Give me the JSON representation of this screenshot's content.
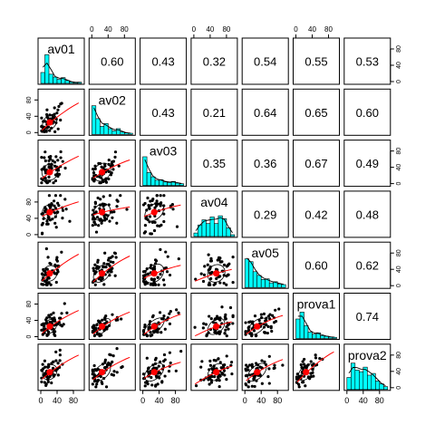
{
  "chart_data": {
    "type": "scatter",
    "title": "",
    "variables": [
      "av01",
      "av02",
      "av03",
      "av04",
      "av05",
      "prova1",
      "prova2"
    ],
    "axis_range": [
      0,
      100
    ],
    "axis_ticks": [
      "0",
      "40",
      "80"
    ],
    "tick_values": [
      0,
      40,
      80
    ],
    "correlations": [
      [
        "",
        "0.60",
        "0.43",
        "0.32",
        "0.54",
        "0.55",
        "0.53"
      ],
      [
        "",
        "",
        "0.43",
        "0.21",
        "0.64",
        "0.65",
        "0.60"
      ],
      [
        "",
        "",
        "",
        "0.35",
        "0.36",
        "0.67",
        "0.49"
      ],
      [
        "",
        "",
        "",
        "",
        "0.29",
        "0.42",
        "0.48"
      ],
      [
        "",
        "",
        "",
        "",
        "",
        "0.60",
        "0.62"
      ],
      [
        "",
        "",
        "",
        "",
        "",
        "",
        "0.74"
      ],
      [
        "",
        "",
        "",
        "",
        "",
        "",
        ""
      ]
    ],
    "histograms": {
      "av01": [
        0.38,
        1.0,
        0.32,
        0.22,
        0.14,
        0.2,
        0.1,
        0.05,
        0.03,
        0.04
      ],
      "av02": [
        1.0,
        0.55,
        0.28,
        0.38,
        0.2,
        0.12,
        0.2,
        0.08,
        0.05,
        0.04
      ],
      "av03": [
        1.0,
        0.45,
        0.3,
        0.18,
        0.2,
        0.12,
        0.1,
        0.14,
        0.08,
        0.06
      ],
      "av04": [
        0.12,
        0.4,
        0.58,
        0.45,
        0.68,
        0.45,
        0.72,
        0.62,
        0.3,
        0.06
      ],
      "av05": [
        1.0,
        0.9,
        0.55,
        0.42,
        0.28,
        0.3,
        0.16,
        0.2,
        0.12,
        0.1
      ],
      "prova1": [
        0.68,
        0.92,
        0.45,
        0.22,
        0.15,
        0.2,
        0.1,
        0.08,
        0.05,
        0.04
      ],
      "prova2": [
        0.42,
        0.92,
        0.68,
        0.62,
        0.78,
        0.5,
        0.56,
        0.3,
        0.2,
        0.1
      ]
    },
    "colors": {
      "histogram_fill": "#00ffff",
      "fit_line": "#ff0000",
      "mean_point": "#ff0000",
      "points": "#000000",
      "ellipse": "#000000"
    },
    "grid": false,
    "legend": "none",
    "xlabel": "",
    "ylabel": ""
  }
}
